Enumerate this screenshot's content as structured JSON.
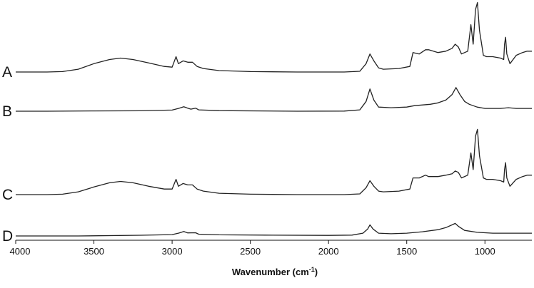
{
  "chart_data": {
    "type": "line",
    "title": "",
    "xlabel": "Wavenumber (cm",
    "xlabel_sup": "-1",
    "xlabel_close": ")",
    "ylabel": "",
    "xlim": [
      4000,
      700
    ],
    "x_reversed": true,
    "grid": false,
    "x_ticks": [
      4000,
      3500,
      3000,
      2500,
      2000,
      1500,
      1000
    ],
    "series": [
      {
        "label": "A",
        "points": [
          [
            4000,
            0
          ],
          [
            3800,
            0
          ],
          [
            3700,
            0.3
          ],
          [
            3600,
            2
          ],
          [
            3500,
            6
          ],
          [
            3400,
            9
          ],
          [
            3330,
            10
          ],
          [
            3250,
            9
          ],
          [
            3150,
            6.5
          ],
          [
            3050,
            4
          ],
          [
            3000,
            3.5
          ],
          [
            2975,
            11
          ],
          [
            2960,
            6
          ],
          [
            2930,
            8
          ],
          [
            2900,
            7
          ],
          [
            2870,
            7
          ],
          [
            2840,
            4
          ],
          [
            2800,
            2.5
          ],
          [
            2700,
            1
          ],
          [
            2500,
            0.3
          ],
          [
            2200,
            0
          ],
          [
            1900,
            0
          ],
          [
            1800,
            0.5
          ],
          [
            1760,
            6
          ],
          [
            1735,
            13
          ],
          [
            1710,
            8
          ],
          [
            1680,
            3
          ],
          [
            1650,
            2
          ],
          [
            1550,
            2.5
          ],
          [
            1480,
            4
          ],
          [
            1460,
            14
          ],
          [
            1420,
            13
          ],
          [
            1380,
            16
          ],
          [
            1360,
            16
          ],
          [
            1300,
            14
          ],
          [
            1250,
            15
          ],
          [
            1210,
            17
          ],
          [
            1190,
            20
          ],
          [
            1170,
            18
          ],
          [
            1150,
            13
          ],
          [
            1110,
            15
          ],
          [
            1090,
            34
          ],
          [
            1075,
            20
          ],
          [
            1060,
            45
          ],
          [
            1048,
            50
          ],
          [
            1035,
            30
          ],
          [
            1010,
            12
          ],
          [
            990,
            11
          ],
          [
            950,
            11
          ],
          [
            900,
            10
          ],
          [
            880,
            9
          ],
          [
            875,
            20
          ],
          [
            868,
            25
          ],
          [
            860,
            13
          ],
          [
            840,
            6
          ],
          [
            800,
            12
          ],
          [
            760,
            14
          ],
          [
            730,
            15
          ],
          [
            700,
            15
          ]
        ]
      },
      {
        "label": "B",
        "points": [
          [
            4000,
            0
          ],
          [
            3800,
            0
          ],
          [
            3500,
            0.2
          ],
          [
            3200,
            0.3
          ],
          [
            3000,
            0.8
          ],
          [
            2960,
            2
          ],
          [
            2925,
            3.2
          ],
          [
            2900,
            2.2
          ],
          [
            2880,
            1.5
          ],
          [
            2850,
            2.2
          ],
          [
            2830,
            1
          ],
          [
            2700,
            0.4
          ],
          [
            2200,
            0
          ],
          [
            1900,
            0.1
          ],
          [
            1800,
            1
          ],
          [
            1760,
            7
          ],
          [
            1735,
            16
          ],
          [
            1710,
            8
          ],
          [
            1680,
            3
          ],
          [
            1600,
            2.5
          ],
          [
            1500,
            3
          ],
          [
            1450,
            4
          ],
          [
            1350,
            5
          ],
          [
            1300,
            6
          ],
          [
            1250,
            8
          ],
          [
            1210,
            12
          ],
          [
            1185,
            17
          ],
          [
            1160,
            12
          ],
          [
            1130,
            7
          ],
          [
            1100,
            5
          ],
          [
            1050,
            3
          ],
          [
            1000,
            2
          ],
          [
            900,
            2
          ],
          [
            850,
            2.5
          ],
          [
            800,
            2
          ],
          [
            700,
            2
          ]
        ]
      },
      {
        "label": "C",
        "points": [
          [
            4000,
            0
          ],
          [
            3800,
            0
          ],
          [
            3700,
            0.3
          ],
          [
            3600,
            2
          ],
          [
            3500,
            5.5
          ],
          [
            3400,
            8.5
          ],
          [
            3330,
            9.5
          ],
          [
            3250,
            8.5
          ],
          [
            3150,
            6
          ],
          [
            3050,
            4
          ],
          [
            3000,
            4
          ],
          [
            2975,
            11
          ],
          [
            2960,
            6
          ],
          [
            2930,
            8
          ],
          [
            2900,
            7
          ],
          [
            2870,
            7
          ],
          [
            2840,
            4
          ],
          [
            2800,
            2.5
          ],
          [
            2700,
            1
          ],
          [
            2500,
            0.3
          ],
          [
            2200,
            0
          ],
          [
            1900,
            0
          ],
          [
            1800,
            0.5
          ],
          [
            1760,
            5
          ],
          [
            1735,
            10
          ],
          [
            1710,
            6
          ],
          [
            1680,
            2.5
          ],
          [
            1650,
            2
          ],
          [
            1550,
            2.5
          ],
          [
            1480,
            4
          ],
          [
            1460,
            12
          ],
          [
            1420,
            12
          ],
          [
            1380,
            14
          ],
          [
            1360,
            13
          ],
          [
            1300,
            13
          ],
          [
            1250,
            14
          ],
          [
            1210,
            15
          ],
          [
            1190,
            17
          ],
          [
            1170,
            16
          ],
          [
            1150,
            12
          ],
          [
            1110,
            14
          ],
          [
            1090,
            30
          ],
          [
            1075,
            18
          ],
          [
            1060,
            42
          ],
          [
            1048,
            47
          ],
          [
            1035,
            28
          ],
          [
            1010,
            12
          ],
          [
            990,
            11
          ],
          [
            950,
            11
          ],
          [
            900,
            10
          ],
          [
            880,
            9
          ],
          [
            875,
            18
          ],
          [
            868,
            23
          ],
          [
            860,
            12
          ],
          [
            840,
            6
          ],
          [
            800,
            11
          ],
          [
            760,
            13
          ],
          [
            730,
            14
          ],
          [
            700,
            14
          ]
        ]
      },
      {
        "label": "D",
        "points": [
          [
            4000,
            0
          ],
          [
            3600,
            0
          ],
          [
            3200,
            0.5
          ],
          [
            3000,
            1
          ],
          [
            2960,
            2
          ],
          [
            2925,
            3.2
          ],
          [
            2900,
            2.2
          ],
          [
            2850,
            2.3
          ],
          [
            2830,
            1.3
          ],
          [
            2700,
            0.8
          ],
          [
            2400,
            0.6
          ],
          [
            2000,
            0.4
          ],
          [
            1850,
            0.6
          ],
          [
            1780,
            2
          ],
          [
            1750,
            5
          ],
          [
            1735,
            8
          ],
          [
            1715,
            5
          ],
          [
            1680,
            2
          ],
          [
            1600,
            1.6
          ],
          [
            1500,
            2
          ],
          [
            1400,
            3
          ],
          [
            1300,
            4.5
          ],
          [
            1250,
            6
          ],
          [
            1210,
            8
          ],
          [
            1190,
            9
          ],
          [
            1170,
            7
          ],
          [
            1130,
            4
          ],
          [
            1050,
            2.6
          ],
          [
            950,
            2
          ],
          [
            850,
            2
          ],
          [
            750,
            2
          ],
          [
            700,
            2
          ]
        ]
      }
    ]
  }
}
